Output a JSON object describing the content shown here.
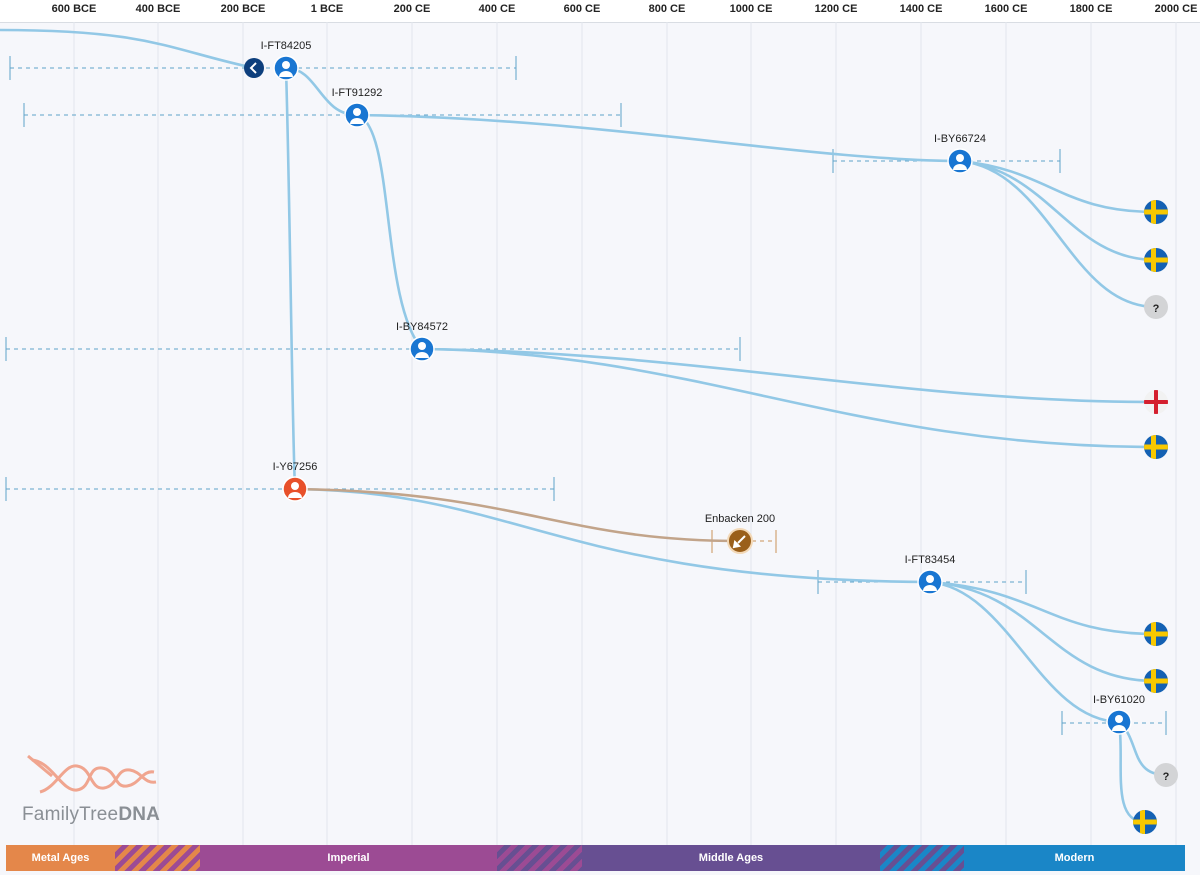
{
  "axis": {
    "ticks": [
      "600 BCE",
      "400 BCE",
      "200 BCE",
      "1 BCE",
      "200 CE",
      "400 CE",
      "600 CE",
      "800 CE",
      "1000 CE",
      "1200 CE",
      "1400 CE",
      "1600 CE",
      "1800 CE",
      "2000 CE"
    ]
  },
  "nodes": [
    {
      "id": "ft84205",
      "label": "I-FT84205",
      "type": "person",
      "color": "#1976d2"
    },
    {
      "id": "ft91292",
      "label": "I-FT91292",
      "type": "person",
      "color": "#1976d2"
    },
    {
      "id": "by66724",
      "label": "I-BY66724",
      "type": "person",
      "color": "#1976d2"
    },
    {
      "id": "by84572",
      "label": "I-BY84572",
      "type": "person",
      "color": "#1976d2"
    },
    {
      "id": "y67256",
      "label": "I-Y67256",
      "type": "person",
      "color": "#e8502a"
    },
    {
      "id": "enbacken",
      "label": "Enbacken 200",
      "type": "ancient-sample",
      "color": "#9a5f1a"
    },
    {
      "id": "ft83454",
      "label": "I-FT83454",
      "type": "person",
      "color": "#1976d2"
    },
    {
      "id": "by61020",
      "label": "I-BY61020",
      "type": "person",
      "color": "#1976d2"
    }
  ],
  "leaves": [
    {
      "id": "leaf1",
      "kind": "sweden-flag"
    },
    {
      "id": "leaf2",
      "kind": "sweden-flag"
    },
    {
      "id": "leaf3",
      "kind": "unknown",
      "text": "?"
    },
    {
      "id": "leaf4",
      "kind": "england-flag"
    },
    {
      "id": "leaf5",
      "kind": "sweden-flag"
    },
    {
      "id": "leaf6",
      "kind": "sweden-flag"
    },
    {
      "id": "leaf7",
      "kind": "sweden-flag"
    },
    {
      "id": "leaf8",
      "kind": "unknown",
      "text": "?"
    },
    {
      "id": "leaf9",
      "kind": "sweden-flag"
    }
  ],
  "eras": [
    {
      "label": "Metal Ages",
      "color": "#e4874a"
    },
    {
      "label": "Imperial",
      "color": "#9c4b94"
    },
    {
      "label": "Middle Ages",
      "color": "#674f92"
    },
    {
      "label": "Modern",
      "color": "#1a86c7"
    }
  ],
  "logo": {
    "brand_light": "FamilyTree",
    "brand_bold": "DNA"
  },
  "colors": {
    "branch": "#92c8e6",
    "range": "#5fa3c9",
    "node": "#1976d2",
    "highlight": "#e8502a",
    "ancient": "#9a5f1a"
  }
}
